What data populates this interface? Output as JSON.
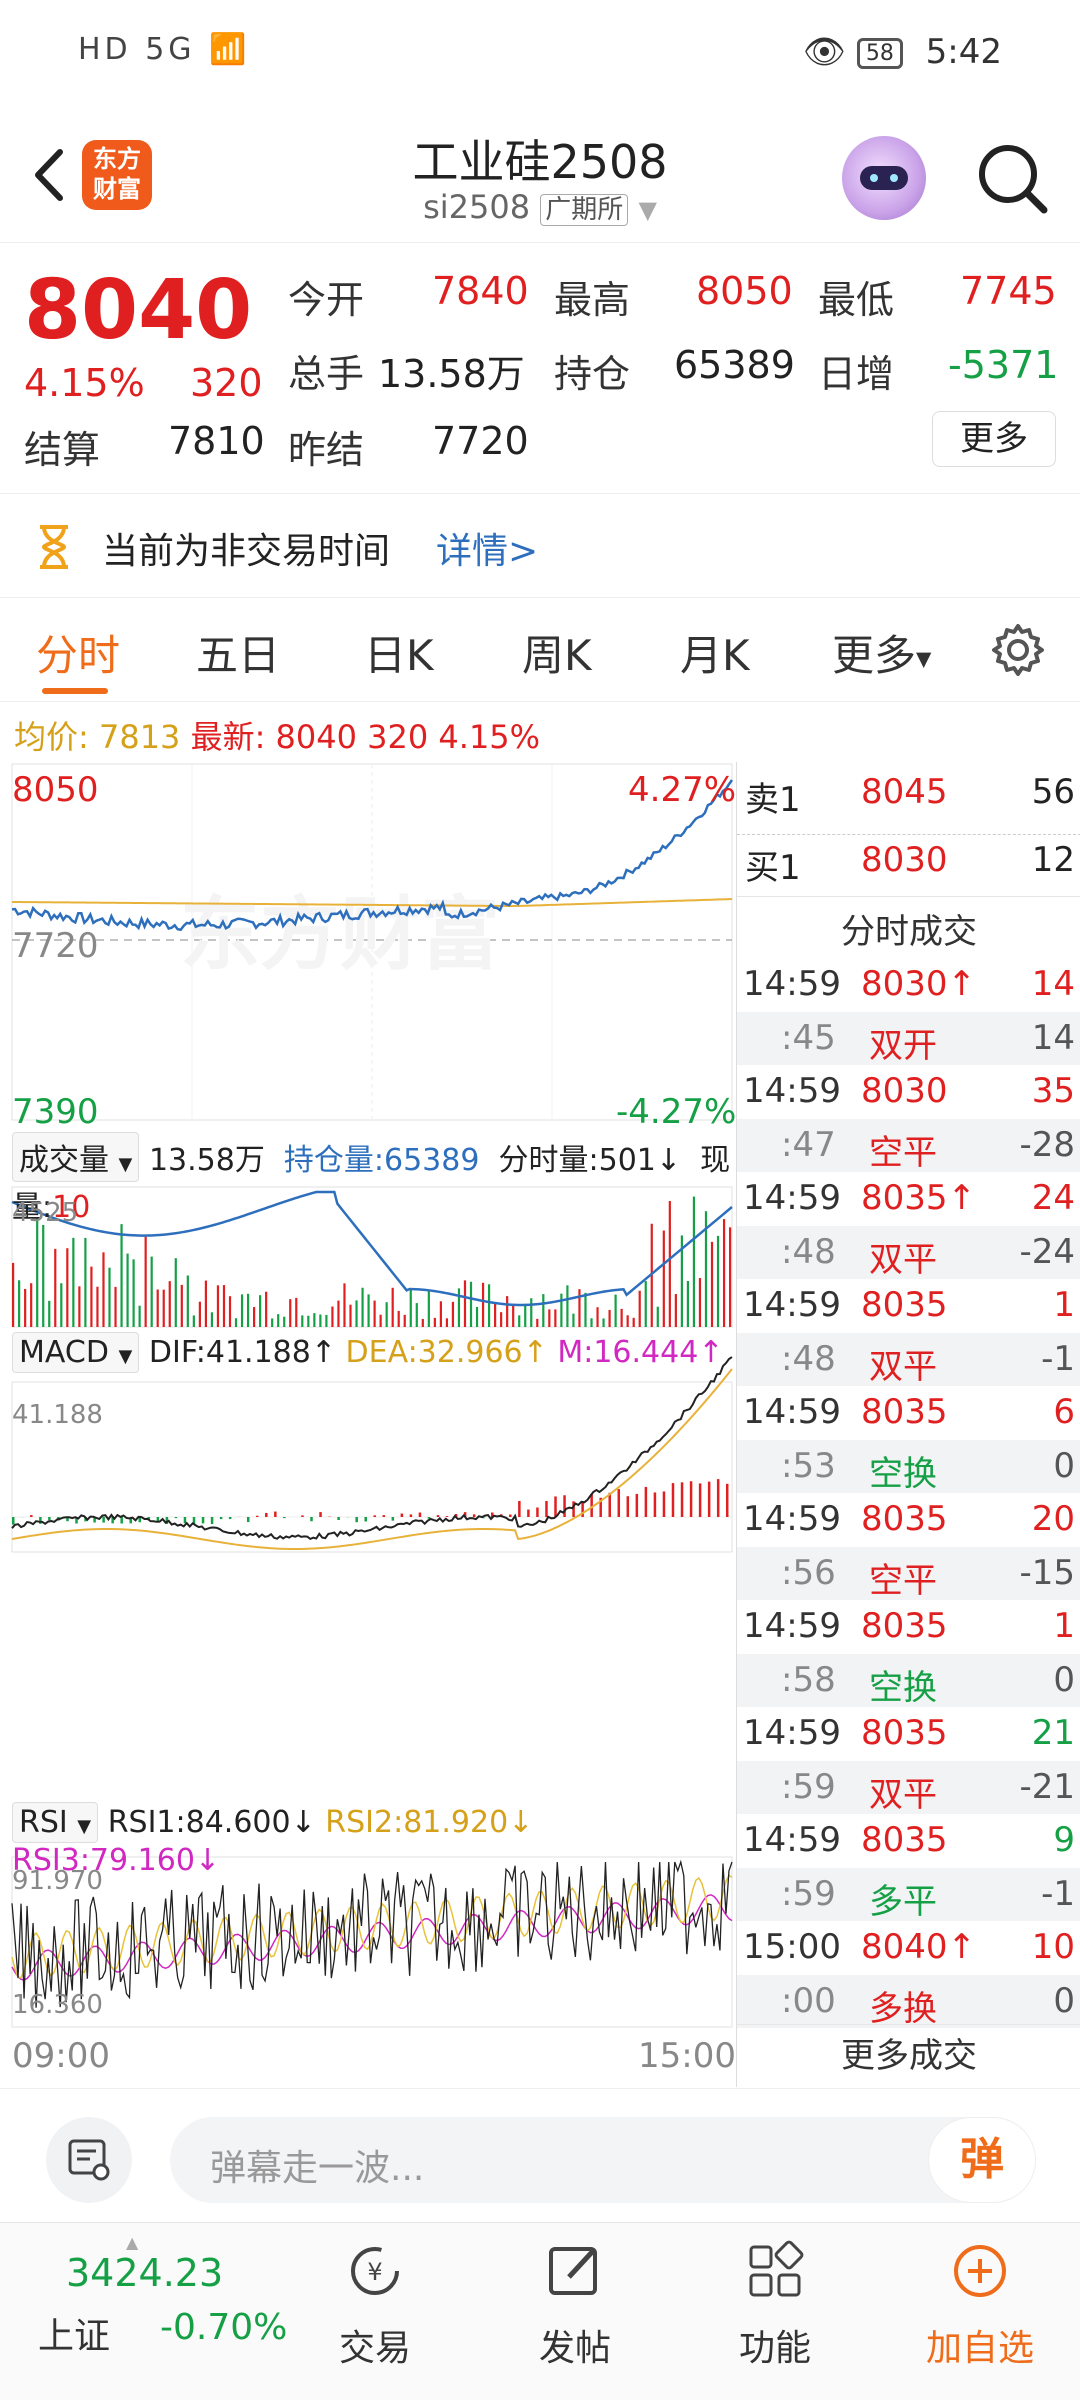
{
  "status_bar": {
    "left_icons": "HD 5G",
    "battery": "58",
    "time": "5:42"
  },
  "header": {
    "logo_text_line1": "东方",
    "logo_text_line2": "财富",
    "title": "工业硅2508",
    "symbol": "si2508",
    "exchange": "广期所"
  },
  "quote": {
    "price": "8040",
    "change_pct": "4.15%",
    "change": "320",
    "open_label": "今开",
    "open": "7840",
    "high_label": "最高",
    "high": "8050",
    "low_label": "最低",
    "low": "7745",
    "volume_label": "总手",
    "volume": "13.58万",
    "oi_label": "持仓",
    "oi": "65389",
    "daily_inc_label": "日增",
    "daily_inc": "-5371",
    "settle_label": "结算",
    "settle": "7810",
    "prev_settle_label": "昨结",
    "prev_settle": "7720",
    "more_label": "更多"
  },
  "notice": {
    "text": "当前为非交易时间",
    "link": "详情>"
  },
  "tabs": [
    {
      "label": "分时"
    },
    {
      "label": "五日"
    },
    {
      "label": "日K"
    },
    {
      "label": "周K"
    },
    {
      "label": "月K"
    },
    {
      "label": "更多"
    }
  ],
  "info_line": {
    "avg_label": "均价:",
    "avg": "7813",
    "latest_label": "最新:",
    "latest": "8040",
    "chg": "320",
    "pct": "4.15%"
  },
  "chart": {
    "price_high": "8050",
    "pct_high": "4.27%",
    "baseline": "7720",
    "price_low": "7390",
    "pct_low": "-4.27%",
    "vol_label": "成交量",
    "vol_total": "13.58万",
    "oi_label": "持仓量:65389",
    "minute_vol": "分时量:501↓",
    "cur_vol_label": "现量:",
    "cur_vol": "10",
    "vol_axis": "4525",
    "macd_label": "MACD",
    "dif": "DIF:41.188↑",
    "dea": "DEA:32.966↑",
    "m": "M:16.444↑",
    "macd_axis": "41.188",
    "rsi_label": "RSI",
    "rsi1": "RSI1:84.600↓",
    "rsi2": "RSI2:81.920↓",
    "rsi3": "RSI3:79.160↓",
    "rsi_axis_top": "91.970",
    "rsi_axis_bottom": "16.360",
    "time_start": "09:00",
    "time_end": "15:00",
    "watermark": "东方财富",
    "colors": {
      "price_line": "#2e6fbd",
      "avg_line": "#e8b23a",
      "up": "#e02020",
      "down": "#15a046"
    }
  },
  "orderbook": {
    "sell_label": "卖1",
    "sell_price": "8045",
    "sell_qty": "56",
    "buy_label": "买1",
    "buy_price": "8030",
    "buy_qty": "12"
  },
  "trades_title": "分时成交",
  "trades": [
    {
      "time": "14:59",
      "price": "8030↑",
      "qty": "14",
      "sec": ":45",
      "type": "双开",
      "chg": "14"
    },
    {
      "time": "14:59",
      "price": "8030",
      "qty": "35",
      "sec": ":47",
      "type": "空平",
      "chg": "-28"
    },
    {
      "time": "14:59",
      "price": "8035↑",
      "qty": "24",
      "sec": ":48",
      "type": "双平",
      "chg": "-24"
    },
    {
      "time": "14:59",
      "price": "8035",
      "qty": "1",
      "sec": ":48",
      "type": "双平",
      "chg": "-1"
    },
    {
      "time": "14:59",
      "price": "8035",
      "qty": "6",
      "sec": ":53",
      "type": "空换",
      "chg": "0"
    },
    {
      "time": "14:59",
      "price": "8035",
      "qty": "20",
      "sec": ":56",
      "type": "空平",
      "chg": "-15"
    },
    {
      "time": "14:59",
      "price": "8035",
      "qty": "1",
      "sec": ":58",
      "type": "空换",
      "chg": "0"
    },
    {
      "time": "14:59",
      "price": "8035",
      "qty": "21",
      "sec": ":59",
      "type": "双平",
      "chg": "-21"
    },
    {
      "time": "14:59",
      "price": "8035",
      "qty": "9",
      "sec": ":59",
      "type": "多平",
      "chg": "-1"
    },
    {
      "time": "15:00",
      "price": "8040↑",
      "qty": "10",
      "sec": ":00",
      "type": "多换",
      "chg": "0"
    }
  ],
  "more_trades": "更多成交",
  "comment": {
    "placeholder": "弹幕走一波...",
    "button": "弹"
  },
  "bottom_nav": {
    "index_value": "3424.23",
    "index_name": "上证",
    "index_change": "-0.70%",
    "trade": "交易",
    "post": "发帖",
    "func": "功能",
    "watch": "加自选"
  }
}
